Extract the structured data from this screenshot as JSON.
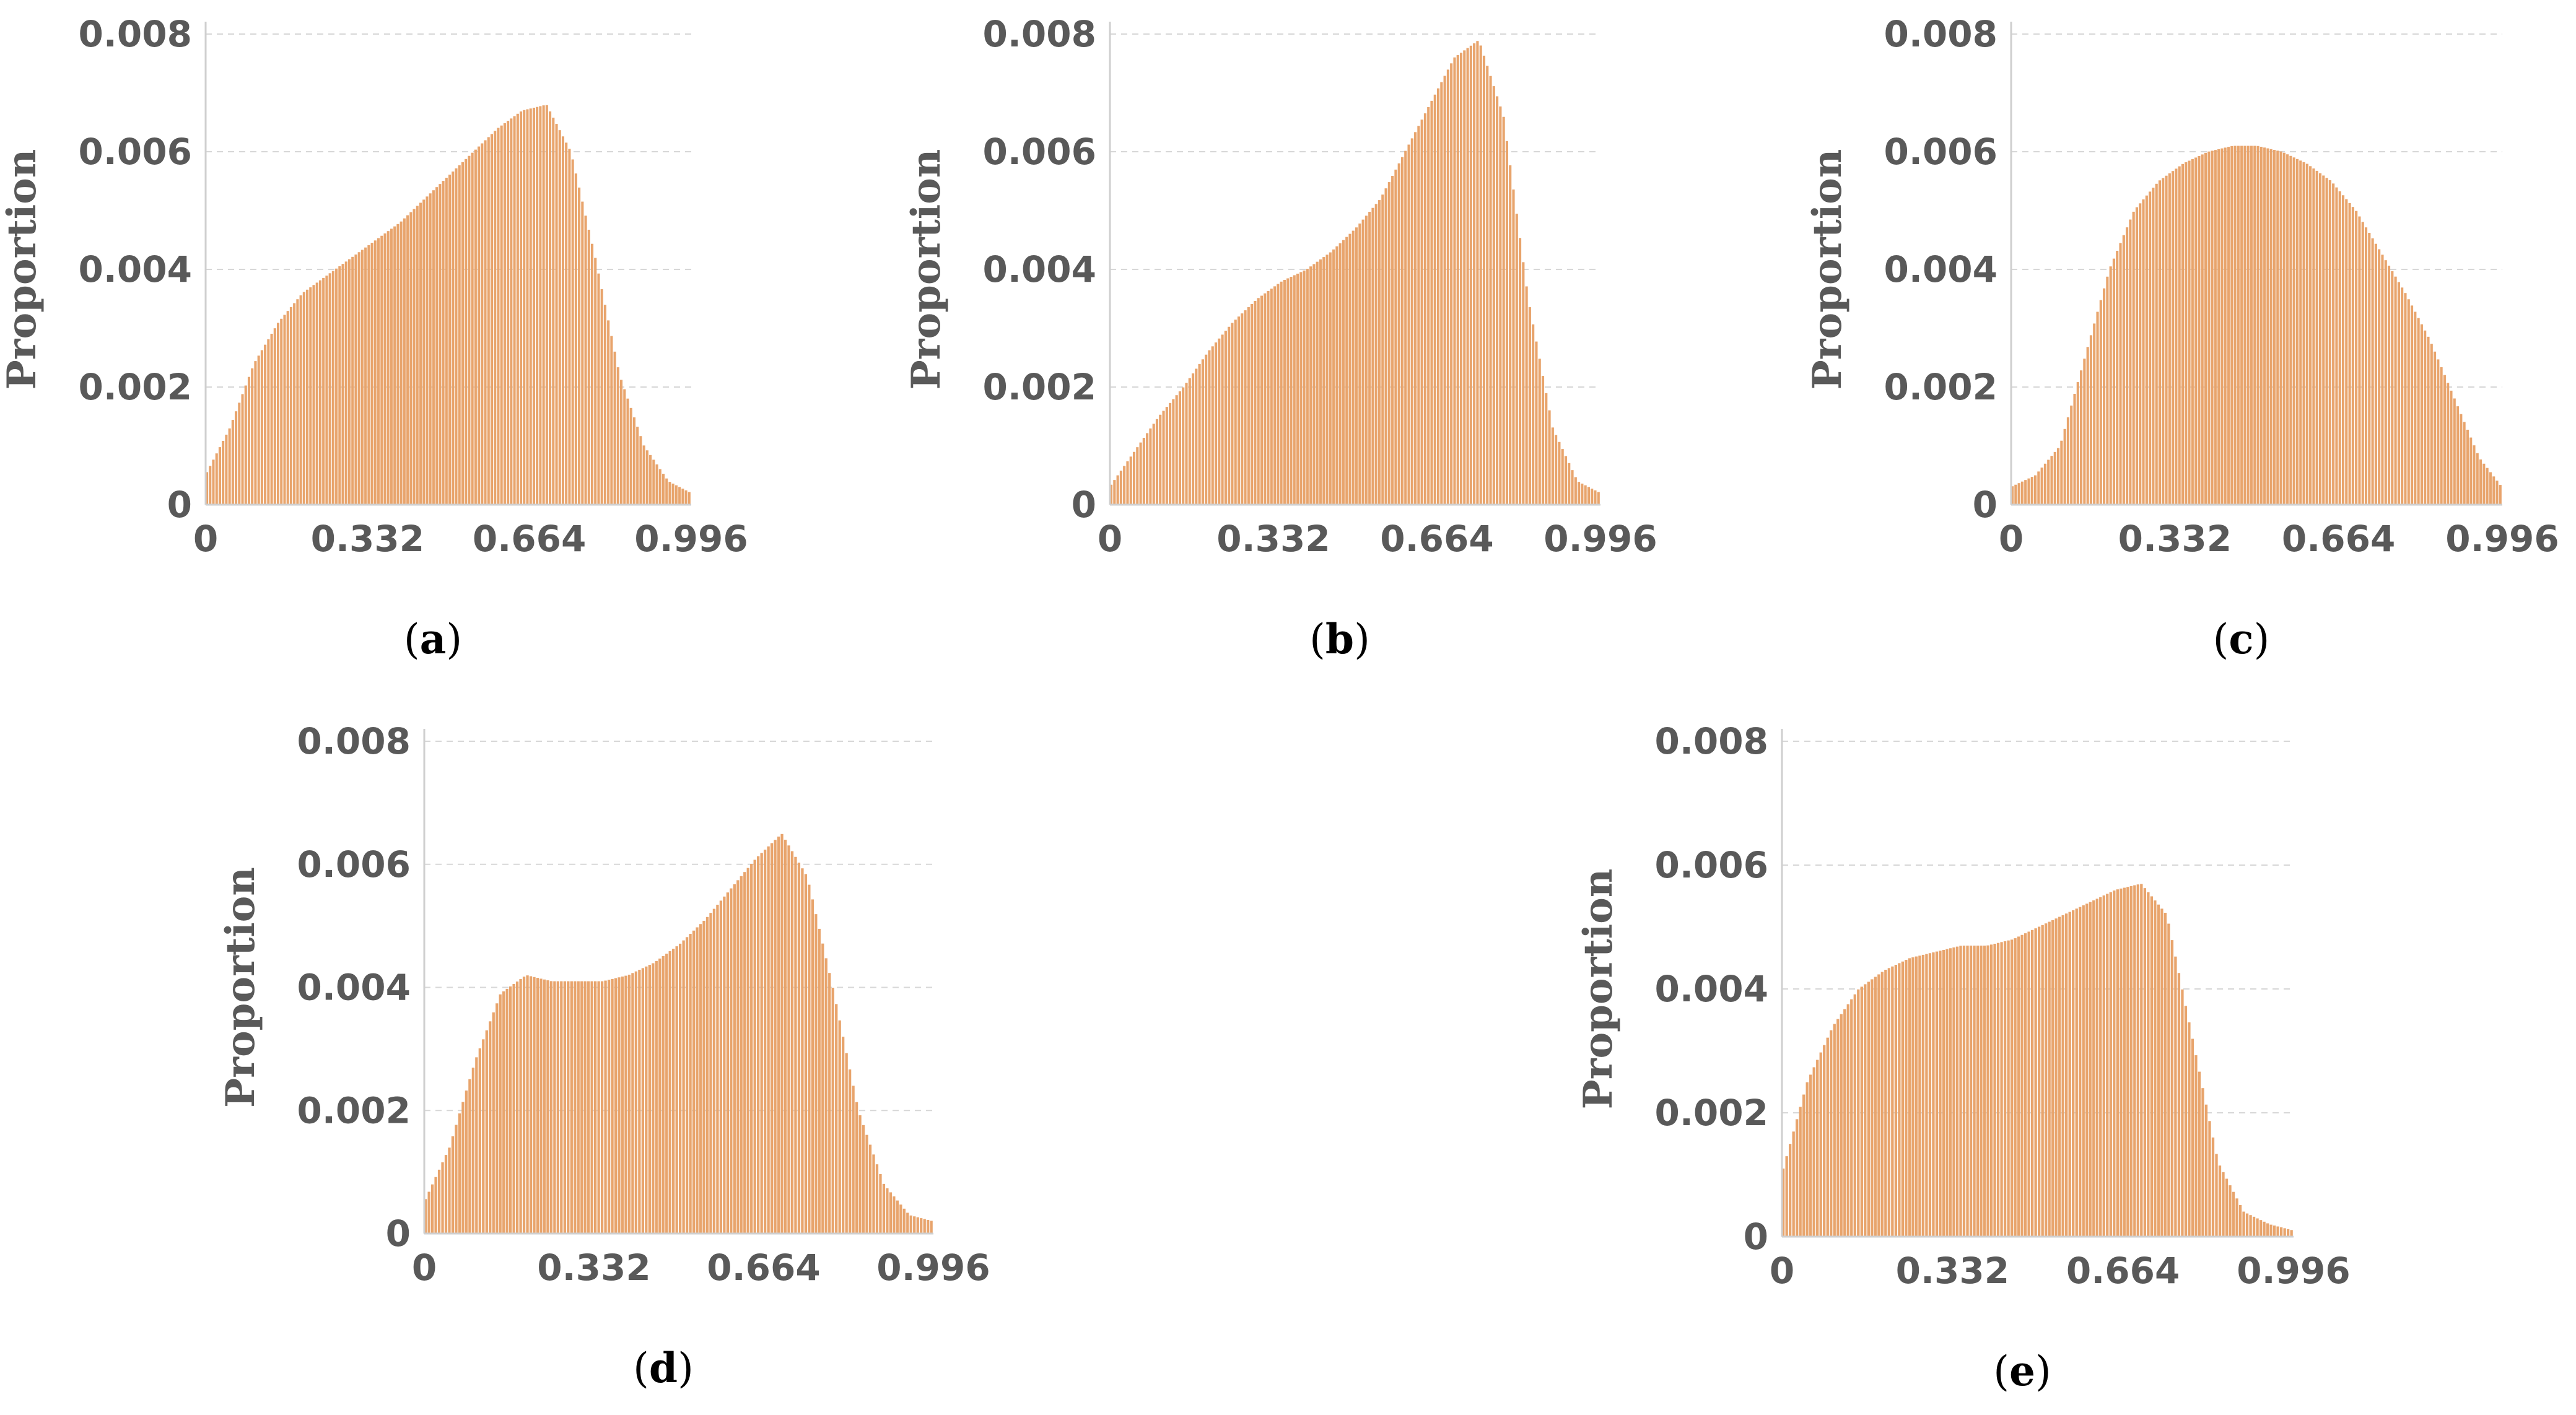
{
  "colors": {
    "bar": "#e8a46c",
    "bar_edge": "#d9885a",
    "grid": "#d7d7d7",
    "axis": "#cfcfcf",
    "text": "#595959"
  },
  "chart_data": [
    {
      "id": "a",
      "type": "bar",
      "caption": "(a)",
      "caption_letter": "a",
      "ylabel": "Proportion",
      "xlim": [
        0,
        0.996
      ],
      "ylim": [
        0,
        0.008
      ],
      "xticks": [
        "0",
        "0.332",
        "0.664",
        "0.996"
      ],
      "yticks": [
        "0",
        "0.002",
        "0.004",
        "0.006",
        "0.008"
      ],
      "grid": true,
      "x": [
        0,
        0.05,
        0.1,
        0.15,
        0.2,
        0.25,
        0.3,
        0.35,
        0.4,
        0.45,
        0.5,
        0.55,
        0.6,
        0.65,
        0.7,
        0.75,
        0.8,
        0.85,
        0.9,
        0.95,
        0.996
      ],
      "values": [
        0.0005,
        0.0013,
        0.0024,
        0.0031,
        0.0036,
        0.0039,
        0.0042,
        0.0045,
        0.0048,
        0.0052,
        0.0056,
        0.006,
        0.0064,
        0.0067,
        0.0068,
        0.006,
        0.0042,
        0.0022,
        0.001,
        0.0004,
        0.0002
      ]
    },
    {
      "id": "b",
      "type": "bar",
      "caption": "(b)",
      "caption_letter": "b",
      "ylabel": "Proportion",
      "xlim": [
        0,
        0.996
      ],
      "ylim": [
        0,
        0.008
      ],
      "xticks": [
        "0",
        "0.332",
        "0.664",
        "0.996"
      ],
      "yticks": [
        "0",
        "0.002",
        "0.004",
        "0.006",
        "0.008"
      ],
      "grid": true,
      "x": [
        0,
        0.05,
        0.1,
        0.15,
        0.2,
        0.25,
        0.3,
        0.35,
        0.4,
        0.45,
        0.5,
        0.55,
        0.6,
        0.65,
        0.7,
        0.75,
        0.8,
        0.85,
        0.9,
        0.95,
        0.996
      ],
      "values": [
        0.0003,
        0.0009,
        0.0015,
        0.002,
        0.0026,
        0.0031,
        0.0035,
        0.0038,
        0.004,
        0.0043,
        0.0047,
        0.0052,
        0.006,
        0.0068,
        0.0076,
        0.0079,
        0.0066,
        0.0035,
        0.0013,
        0.0004,
        0.0002
      ]
    },
    {
      "id": "c",
      "type": "bar",
      "caption": "(c)",
      "caption_letter": "c",
      "ylabel": "Proportion",
      "xlim": [
        0,
        0.996
      ],
      "ylim": [
        0,
        0.008
      ],
      "xticks": [
        "0",
        "0.332",
        "0.664",
        "0.996"
      ],
      "yticks": [
        "0",
        "0.002",
        "0.004",
        "0.006",
        "0.008"
      ],
      "grid": true,
      "x": [
        0,
        0.05,
        0.1,
        0.15,
        0.2,
        0.25,
        0.3,
        0.35,
        0.4,
        0.45,
        0.5,
        0.55,
        0.6,
        0.65,
        0.7,
        0.75,
        0.8,
        0.85,
        0.9,
        0.95,
        0.996
      ],
      "values": [
        0.0003,
        0.0005,
        0.001,
        0.0025,
        0.004,
        0.005,
        0.0055,
        0.0058,
        0.006,
        0.0061,
        0.0061,
        0.006,
        0.0058,
        0.0055,
        0.005,
        0.0043,
        0.0036,
        0.0028,
        0.0018,
        0.0008,
        0.0003
      ]
    },
    {
      "id": "d",
      "type": "bar",
      "caption": "(d)",
      "caption_letter": "d",
      "ylabel": "Proportion",
      "xlim": [
        0,
        0.996
      ],
      "ylim": [
        0,
        0.008
      ],
      "xticks": [
        "0",
        "0.332",
        "0.664",
        "0.996"
      ],
      "yticks": [
        "0",
        "0.002",
        "0.004",
        "0.006",
        "0.008"
      ],
      "grid": true,
      "x": [
        0,
        0.05,
        0.1,
        0.15,
        0.2,
        0.25,
        0.3,
        0.35,
        0.4,
        0.45,
        0.5,
        0.55,
        0.6,
        0.65,
        0.7,
        0.75,
        0.8,
        0.85,
        0.9,
        0.95,
        0.996
      ],
      "values": [
        0.0005,
        0.0014,
        0.0028,
        0.0039,
        0.0042,
        0.0041,
        0.0041,
        0.0041,
        0.0042,
        0.0044,
        0.0047,
        0.0051,
        0.0056,
        0.0061,
        0.0065,
        0.0058,
        0.004,
        0.002,
        0.0008,
        0.0003,
        0.0002
      ]
    },
    {
      "id": "e",
      "type": "bar",
      "caption": "(e)",
      "caption_letter": "e",
      "ylabel": "Proportion",
      "xlim": [
        0,
        0.996
      ],
      "ylim": [
        0,
        0.008
      ],
      "xticks": [
        "0",
        "0.332",
        "0.664",
        "0.996"
      ],
      "yticks": [
        "0",
        "0.002",
        "0.004",
        "0.006",
        "0.008"
      ],
      "grid": true,
      "x": [
        0,
        0.05,
        0.1,
        0.15,
        0.2,
        0.25,
        0.3,
        0.35,
        0.4,
        0.45,
        0.5,
        0.55,
        0.6,
        0.65,
        0.7,
        0.75,
        0.8,
        0.85,
        0.9,
        0.95,
        0.996
      ],
      "values": [
        0.001,
        0.0025,
        0.0034,
        0.004,
        0.0043,
        0.0045,
        0.0046,
        0.0047,
        0.0047,
        0.0048,
        0.005,
        0.0052,
        0.0054,
        0.0056,
        0.0057,
        0.0052,
        0.0032,
        0.0012,
        0.0004,
        0.0002,
        0.0001
      ]
    }
  ]
}
